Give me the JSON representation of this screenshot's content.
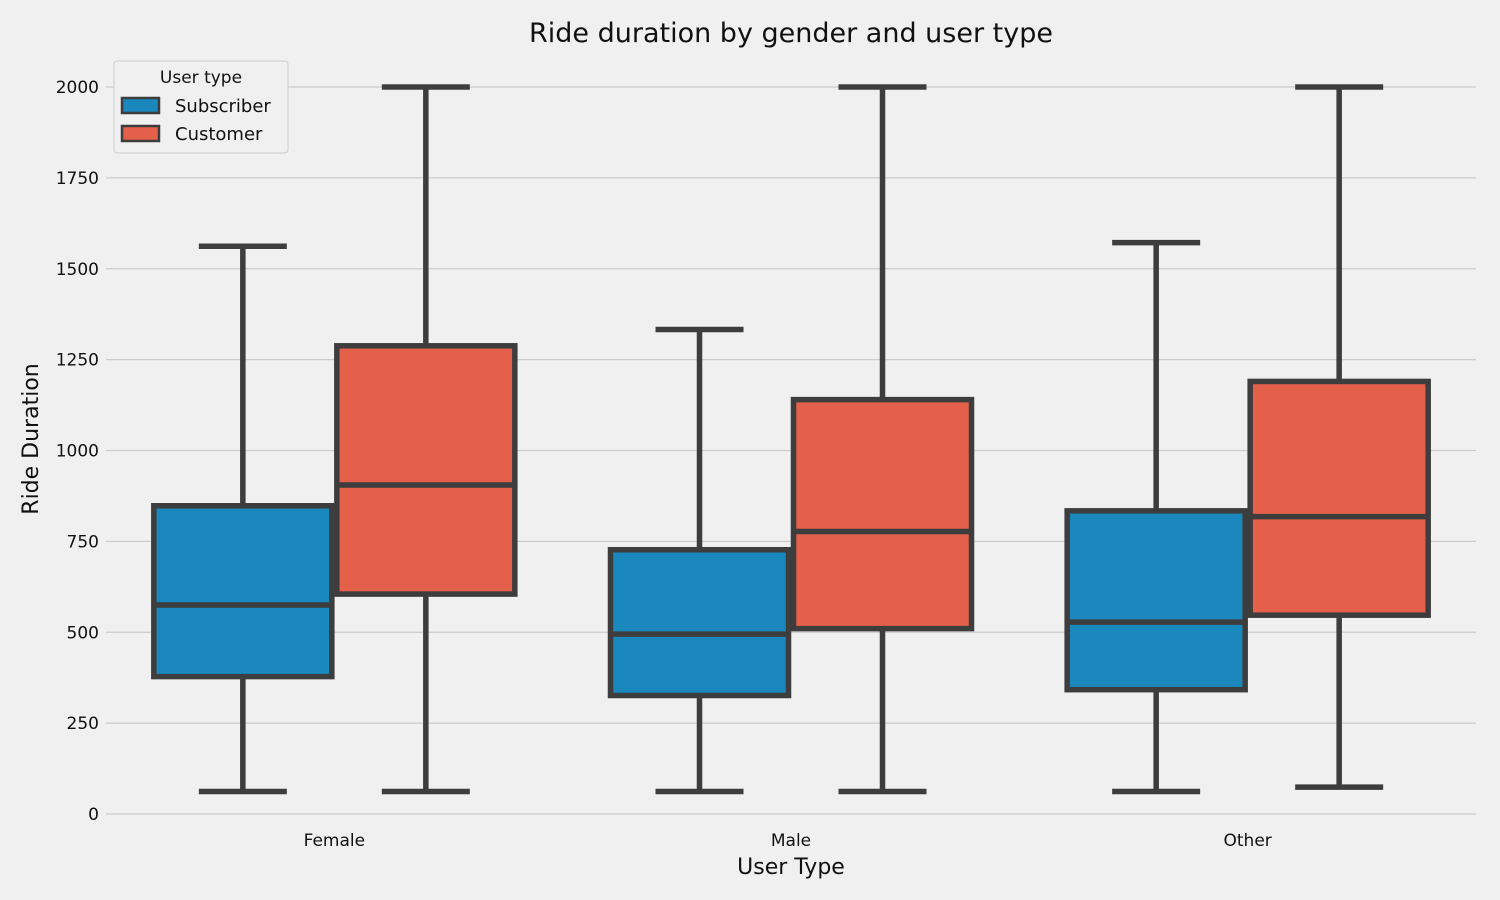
{
  "chart_data": {
    "type": "box",
    "title": "Ride duration by gender and user type",
    "xlabel": "User Type",
    "ylabel": "Ride Duration",
    "categories": [
      "Female",
      "Male",
      "Other"
    ],
    "ylim": [
      0,
      2050
    ],
    "yticks": [
      0,
      250,
      500,
      750,
      1000,
      1250,
      1500,
      1750,
      2000
    ],
    "grid": "horizontal",
    "legend": {
      "title": "User type",
      "placement": "top-left"
    },
    "series": [
      {
        "name": "Subscriber",
        "color": "#1a87bd",
        "boxes": [
          {
            "whislo": 62,
            "q1": 378,
            "med": 575,
            "q3": 848,
            "whishi": 1562
          },
          {
            "whislo": 62,
            "q1": 326,
            "med": 495,
            "q3": 727,
            "whishi": 1333
          },
          {
            "whislo": 62,
            "q1": 342,
            "med": 528,
            "q3": 834,
            "whishi": 1572
          }
        ]
      },
      {
        "name": "Customer",
        "color": "#e5604a",
        "boxes": [
          {
            "whislo": 62,
            "q1": 605,
            "med": 905,
            "q3": 1288,
            "whishi": 2000
          },
          {
            "whislo": 62,
            "q1": 510,
            "med": 777,
            "q3": 1140,
            "whishi": 2000
          },
          {
            "whislo": 74,
            "q1": 547,
            "med": 818,
            "q3": 1190,
            "whishi": 2000
          }
        ]
      }
    ]
  }
}
